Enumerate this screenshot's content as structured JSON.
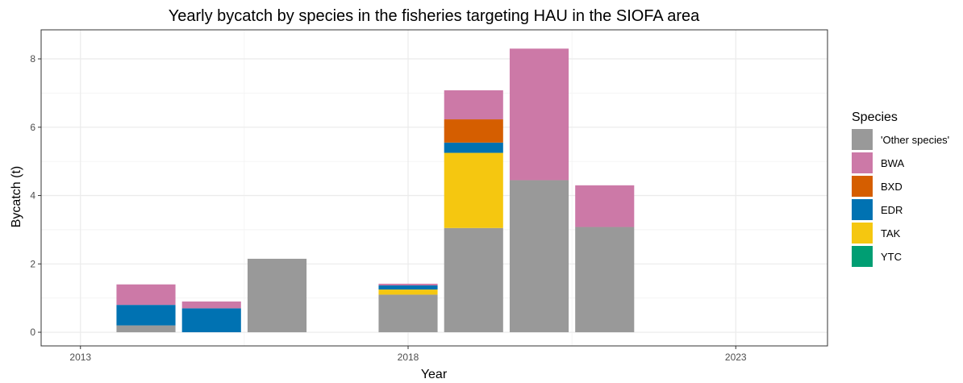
{
  "chart_data": {
    "type": "bar",
    "stacked": true,
    "title": "Yearly bycatch by species in the fisheries targeting HAU in the SIOFA area",
    "xlabel": "Year",
    "ylabel": "Bycatch (t)",
    "x_ticks": [
      2013,
      2018,
      2023
    ],
    "y_ticks": [
      0,
      2,
      4,
      6,
      8
    ],
    "xlim": [
      2012.4,
      2024.4
    ],
    "ylim": [
      -0.4,
      8.85
    ],
    "grid": true,
    "legend": {
      "title": "Species",
      "position": "right"
    },
    "categories": [
      2014,
      2015,
      2016,
      2018,
      2019,
      2020,
      2021
    ],
    "series": [
      {
        "name": "'Other species'",
        "color": "#999999",
        "values": [
          0.2,
          0.0,
          2.15,
          1.1,
          3.05,
          4.45,
          3.08
        ]
      },
      {
        "name": "BWA",
        "color": "#CC79A7",
        "values": [
          0.6,
          0.2,
          0.0,
          0.05,
          0.85,
          3.85,
          1.22
        ]
      },
      {
        "name": "BXD",
        "color": "#D55E00",
        "values": [
          0.0,
          0.0,
          0.0,
          0.0,
          0.68,
          0.0,
          0.0
        ]
      },
      {
        "name": "EDR",
        "color": "#0072B2",
        "values": [
          0.6,
          0.7,
          0.0,
          0.12,
          0.3,
          0.0,
          0.0
        ]
      },
      {
        "name": "TAK",
        "color": "#F5C710",
        "values": [
          0.0,
          0.0,
          0.0,
          0.15,
          2.2,
          0.0,
          0.0
        ]
      },
      {
        "name": "YTC",
        "color": "#009E73",
        "values": [
          0.0,
          0.0,
          0.0,
          0.0,
          0.0,
          0.0,
          0.0
        ]
      }
    ],
    "stack_order_bottom_to_top": [
      "'Other species'",
      "TAK",
      "EDR",
      "BXD",
      "BWA",
      "YTC"
    ]
  }
}
